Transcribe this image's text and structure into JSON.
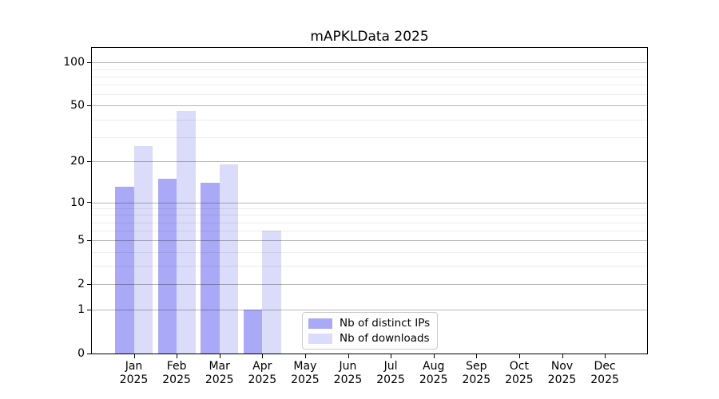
{
  "chart_data": {
    "type": "bar",
    "title": "mAPKLData 2025",
    "year": "2025",
    "categories": [
      "Jan",
      "Feb",
      "Mar",
      "Apr",
      "May",
      "Jun",
      "Jul",
      "Aug",
      "Sep",
      "Oct",
      "Nov",
      "Dec"
    ],
    "series": [
      {
        "name": "Nb of distinct IPs",
        "color": "#a9a9f7",
        "values": [
          13,
          15,
          14,
          1,
          null,
          null,
          null,
          null,
          null,
          null,
          null,
          null
        ]
      },
      {
        "name": "Nb of downloads",
        "color": "#dbdbfa",
        "values": [
          26,
          46,
          19,
          6,
          null,
          null,
          null,
          null,
          null,
          null,
          null,
          null
        ]
      }
    ],
    "yscale": "log1p",
    "ylim": [
      0,
      126
    ],
    "ytick_values": [
      0,
      1,
      2,
      5,
      10,
      20,
      50,
      100
    ],
    "ytick_labels": [
      "0",
      "1",
      "2",
      "5",
      "10",
      "20",
      "50",
      "100"
    ],
    "minor_gridline_values": [
      3,
      4,
      6,
      7,
      8,
      9,
      30,
      40,
      60,
      70,
      80,
      90
    ],
    "grid": "on, drawn above bars",
    "legend_position": "lower center inside plot",
    "xlabel": "",
    "ylabel": ""
  },
  "colors": {
    "background": "#ffffff",
    "axis": "#000000",
    "major_grid": "#b8b8b8",
    "minor_grid": "#ededed",
    "legend_border": "#cbcbcb"
  }
}
